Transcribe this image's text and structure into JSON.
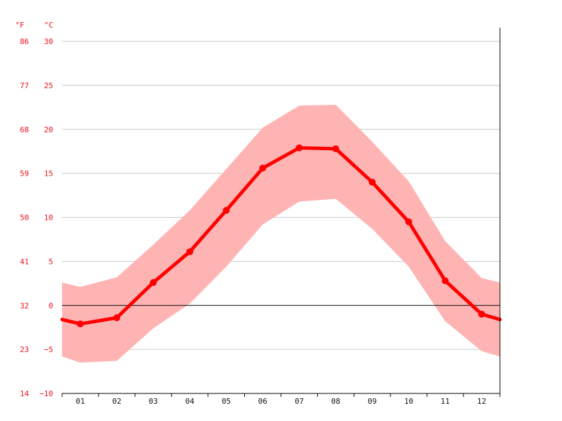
{
  "chart_data": {
    "type": "line",
    "title": "",
    "unit_f": "°F",
    "unit_c": "°C",
    "categories": [
      "01",
      "02",
      "03",
      "04",
      "05",
      "06",
      "07",
      "08",
      "09",
      "10",
      "11",
      "12"
    ],
    "y_ticks_c": [
      "30",
      "25",
      "20",
      "15",
      "10",
      "5",
      "0",
      "−5",
      "−10"
    ],
    "y_ticks_f": [
      "86",
      "77",
      "68",
      "59",
      "50",
      "41",
      "32",
      "23",
      "14"
    ],
    "ylim_c": [
      -10,
      30
    ],
    "grid": true,
    "series": [
      {
        "values": [
          -2.1,
          -1.4,
          2.6,
          6.1,
          10.8,
          15.6,
          17.9,
          17.8,
          14.0,
          9.5,
          2.8,
          -1.0
        ]
      }
    ],
    "range_band": {
      "upper": [
        2.1,
        3.2,
        6.9,
        10.8,
        15.5,
        20.2,
        22.7,
        22.8,
        18.6,
        14.1,
        7.3,
        3.1
      ],
      "lower": [
        -6.5,
        -6.3,
        -2.6,
        0.2,
        4.4,
        9.2,
        11.8,
        12.1,
        8.7,
        4.4,
        -1.8,
        -5.2
      ]
    },
    "edge_values": {
      "line_start": -1.6,
      "line_end": -1.6,
      "upper_start": 2.6,
      "upper_end": 2.6,
      "lower_start": -5.8,
      "lower_end": -5.8
    },
    "colors": {
      "line": "#ff0000",
      "band": "#ffb4b4",
      "text": "#e8141b",
      "zero_line": "#000000",
      "grid": "#c8c8c8"
    }
  }
}
